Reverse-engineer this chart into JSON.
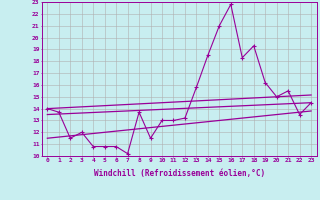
{
  "xlabel": "Windchill (Refroidissement éolien,°C)",
  "bg_color": "#c8eef0",
  "line_color": "#990099",
  "grid_color": "#b0b0b0",
  "xlim": [
    -0.5,
    23.5
  ],
  "ylim": [
    10,
    23
  ],
  "yticks": [
    10,
    11,
    12,
    13,
    14,
    15,
    16,
    17,
    18,
    19,
    20,
    21,
    22,
    23
  ],
  "xticks": [
    0,
    1,
    2,
    3,
    4,
    5,
    6,
    7,
    8,
    9,
    10,
    11,
    12,
    13,
    14,
    15,
    16,
    17,
    18,
    19,
    20,
    21,
    22,
    23
  ],
  "main_x": [
    0,
    1,
    2,
    3,
    4,
    5,
    6,
    7,
    8,
    9,
    10,
    11,
    12,
    13,
    14,
    15,
    16,
    17,
    18,
    19,
    20,
    21,
    22,
    23
  ],
  "main_y": [
    14.0,
    13.7,
    11.5,
    12.0,
    10.8,
    10.8,
    10.8,
    10.2,
    13.7,
    11.5,
    13.0,
    13.0,
    13.2,
    15.8,
    18.5,
    21.0,
    22.8,
    18.3,
    19.3,
    16.2,
    15.0,
    15.5,
    13.5,
    14.5
  ],
  "line2_x": [
    0,
    23
  ],
  "line2_y": [
    14.0,
    15.15
  ],
  "line3_x": [
    0,
    23
  ],
  "line3_y": [
    13.5,
    14.5
  ],
  "line4_x": [
    0,
    23
  ],
  "line4_y": [
    11.5,
    13.8
  ]
}
